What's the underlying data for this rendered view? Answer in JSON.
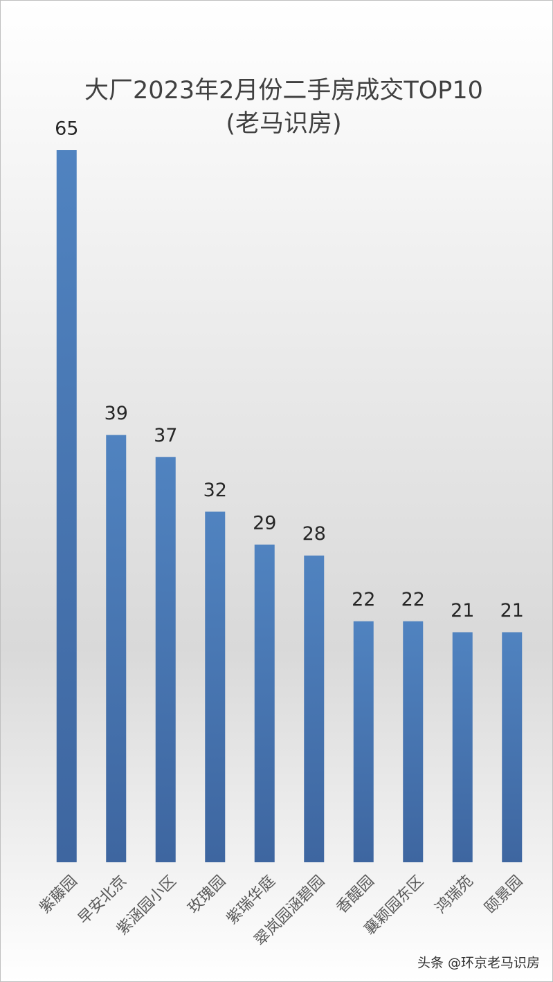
{
  "chart_data": {
    "type": "bar",
    "title": "大厂2023年2月份二手房成交TOP10",
    "subtitle": "(老马识房)",
    "categories": [
      "紫藤园",
      "早安北京",
      "紫涵园小区",
      "玫瑰园",
      "紫瑞华庭",
      "翠岚园涵碧园",
      "香醍园",
      "襄颖园东区",
      "鸿瑞苑",
      "颐景园"
    ],
    "values": [
      65,
      39,
      37,
      32,
      29,
      28,
      22,
      22,
      21,
      21
    ],
    "color": "#4f81bd",
    "ylim": [
      0,
      65
    ]
  },
  "watermark": "头条 @环京老马识房"
}
